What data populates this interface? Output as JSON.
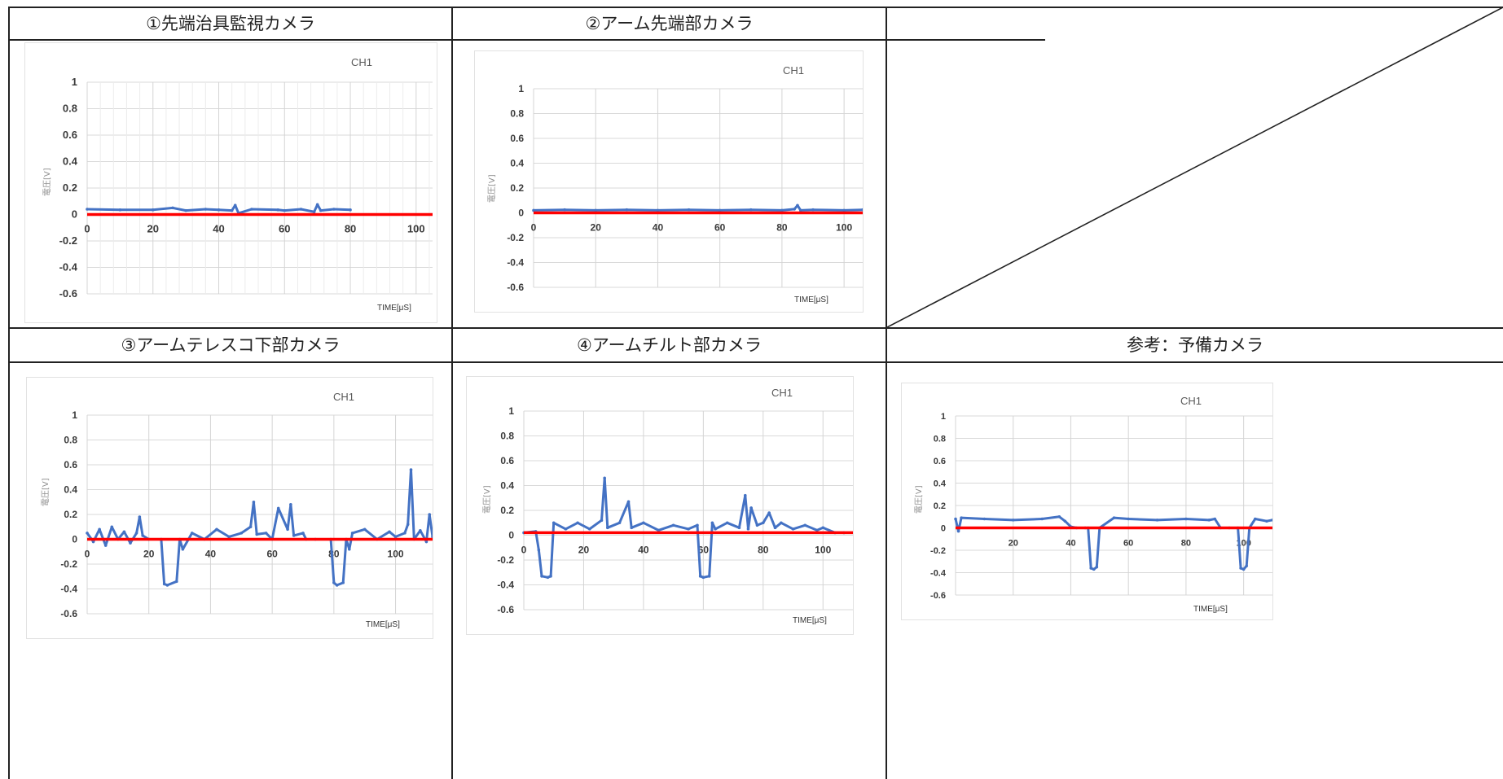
{
  "cells": {
    "c1": {
      "title": "①先端治具監視カメラ"
    },
    "c2": {
      "title": "②アーム先端部カメラ"
    },
    "c3": {
      "title": "③アームテレスコ下部カメラ"
    },
    "c4": {
      "title": "④アームチルト部カメラ"
    },
    "c5": {
      "title": "参考：予備カメラ"
    }
  },
  "chart_data": [
    {
      "id": "c1",
      "type": "line",
      "title": "CH1",
      "xlabel": "TIME[μS]",
      "ylabel": "電圧[V]",
      "xlim": [
        0,
        105
      ],
      "ylim": [
        -0.6,
        1
      ],
      "xticks": [
        0,
        20,
        40,
        60,
        80,
        100
      ],
      "yticks": [
        1,
        0.8,
        0.6,
        0.4,
        0.2,
        0,
        -0.2,
        -0.4,
        -0.6
      ],
      "ytick_labels": [
        "1",
        "0.8",
        "0.6",
        "0.4",
        "0.2",
        "0",
        "-0.2",
        "-0.4",
        "-0.6"
      ],
      "grid": "minor",
      "series": [
        {
          "color": "#4472c4",
          "x": [
            0,
            10,
            20,
            26,
            30,
            36,
            40,
            44,
            45,
            46,
            50,
            58,
            60,
            65,
            69,
            70,
            71,
            75,
            80
          ],
          "y": [
            0.04,
            0.035,
            0.035,
            0.05,
            0.03,
            0.04,
            0.035,
            0.03,
            0.07,
            0.01,
            0.04,
            0.035,
            0.03,
            0.04,
            0.02,
            0.075,
            0.03,
            0.04,
            0.035
          ]
        },
        {
          "color": "#ff0000",
          "x": [
            0,
            105
          ],
          "y": [
            0,
            0
          ]
        }
      ]
    },
    {
      "id": "c2",
      "type": "line",
      "title": "CH1",
      "xlabel": "TIME[μS]",
      "ylabel": "電圧[V]",
      "xlim": [
        0,
        106
      ],
      "ylim": [
        -0.6,
        1
      ],
      "xticks": [
        0,
        20,
        40,
        60,
        80,
        100
      ],
      "yticks": [
        1,
        0.8,
        0.6,
        0.4,
        0.2,
        0,
        -0.2,
        -0.4,
        -0.6
      ],
      "ytick_labels": [
        "1",
        "0.8",
        "0.6",
        "0.4",
        "0.2",
        "0",
        "-0.2",
        "-0.4",
        "-0.6"
      ],
      "grid": "major",
      "series": [
        {
          "color": "#4472c4",
          "x": [
            0,
            10,
            20,
            30,
            40,
            50,
            60,
            70,
            80,
            84,
            85,
            86,
            90,
            100,
            106
          ],
          "y": [
            0.02,
            0.025,
            0.02,
            0.025,
            0.02,
            0.025,
            0.02,
            0.025,
            0.02,
            0.03,
            0.06,
            0.02,
            0.025,
            0.02,
            0.025
          ]
        },
        {
          "color": "#ff0000",
          "x": [
            0,
            106
          ],
          "y": [
            0,
            0
          ]
        }
      ]
    },
    {
      "id": "c3",
      "type": "line",
      "title": "CH1",
      "xlabel": "TIME[μS]",
      "ylabel": "電圧[V]",
      "xlim": [
        0,
        112
      ],
      "ylim": [
        -0.6,
        1
      ],
      "xticks": [
        0,
        20,
        40,
        60,
        80,
        100
      ],
      "yticks": [
        1,
        0.8,
        0.6,
        0.4,
        0.2,
        0,
        -0.2,
        -0.4,
        -0.6
      ],
      "ytick_labels": [
        "1",
        "0.8",
        "0.6",
        "0.4",
        "0.2",
        "0",
        "-0.2",
        "-0.4",
        "-0.6"
      ],
      "grid": "major",
      "series": [
        {
          "color": "#4472c4",
          "x": [
            0,
            2,
            4,
            6,
            8,
            10,
            12,
            14,
            16,
            17,
            18,
            20,
            24,
            25,
            26,
            29,
            30,
            31,
            34,
            38,
            42,
            46,
            50,
            53,
            54,
            55,
            58,
            60,
            62,
            65,
            66,
            67,
            70,
            71,
            74,
            79,
            80,
            81,
            83,
            84,
            85,
            86,
            90,
            94,
            98,
            100,
            103,
            104,
            105,
            106,
            108,
            110,
            111,
            112
          ],
          "y": [
            0.05,
            -0.02,
            0.08,
            -0.05,
            0.1,
            0.0,
            0.06,
            -0.03,
            0.05,
            0.18,
            0.03,
            0.0,
            0.0,
            -0.36,
            -0.37,
            -0.34,
            0.0,
            -0.08,
            0.05,
            0.0,
            0.08,
            0.02,
            0.05,
            0.1,
            0.3,
            0.04,
            0.05,
            0.0,
            0.25,
            0.08,
            0.28,
            0.03,
            0.05,
            0.0,
            0.0,
            0.0,
            -0.35,
            -0.37,
            -0.35,
            0.0,
            -0.08,
            0.05,
            0.08,
            0.0,
            0.06,
            0.02,
            0.05,
            0.12,
            0.56,
            0.0,
            0.07,
            -0.02,
            0.2,
            0.02
          ]
        },
        {
          "color": "#ff0000",
          "x": [
            0,
            112
          ],
          "y": [
            0,
            0
          ]
        }
      ]
    },
    {
      "id": "c4",
      "type": "line",
      "title": "CH1",
      "xlabel": "TIME[μS]",
      "ylabel": "電圧[V]",
      "xlim": [
        0,
        110
      ],
      "ylim": [
        -0.6,
        1
      ],
      "xticks": [
        0,
        20,
        40,
        60,
        80,
        100
      ],
      "yticks": [
        1,
        0.8,
        0.6,
        0.4,
        0.2,
        0,
        -0.2,
        -0.4,
        -0.6
      ],
      "ytick_labels": [
        "1",
        "0.8",
        "0.6",
        "0.4",
        "0.2",
        "0",
        "-0.2",
        "-0.4",
        "-0.6"
      ],
      "grid": "major",
      "series": [
        {
          "color": "#4472c4",
          "x": [
            0,
            4,
            5,
            6,
            8,
            9,
            10,
            14,
            18,
            22,
            26,
            27,
            28,
            32,
            35,
            36,
            40,
            45,
            50,
            55,
            58,
            59,
            60,
            62,
            63,
            64,
            68,
            72,
            74,
            75,
            76,
            78,
            80,
            82,
            84,
            86,
            90,
            94,
            98,
            100,
            104,
            107
          ],
          "y": [
            0.02,
            0.03,
            -0.12,
            -0.33,
            -0.34,
            -0.33,
            0.1,
            0.05,
            0.1,
            0.05,
            0.12,
            0.46,
            0.06,
            0.1,
            0.27,
            0.06,
            0.1,
            0.04,
            0.08,
            0.05,
            0.08,
            -0.33,
            -0.34,
            -0.33,
            0.1,
            0.05,
            0.1,
            0.06,
            0.32,
            0.05,
            0.22,
            0.08,
            0.1,
            0.18,
            0.06,
            0.1,
            0.05,
            0.08,
            0.04,
            0.06,
            0.02,
            0.02
          ]
        },
        {
          "color": "#ff0000",
          "x": [
            0,
            110
          ],
          "y": [
            0.02,
            0.02
          ]
        }
      ]
    },
    {
      "id": "c5",
      "type": "line",
      "title": "CH1",
      "xlabel": "TIME[μS]",
      "ylabel": "電圧[V]",
      "xlim": [
        0,
        110
      ],
      "ylim": [
        -0.6,
        1
      ],
      "xticks": [
        20,
        40,
        60,
        80,
        100
      ],
      "yticks": [
        1,
        0.8,
        0.6,
        0.4,
        0.2,
        0,
        -0.2,
        -0.4,
        -0.6
      ],
      "ytick_labels": [
        "1",
        "0.8",
        "0.6",
        "0.4",
        "0.2",
        "0",
        "-0.2",
        "-0.4",
        "-0.6"
      ],
      "grid": "major",
      "series": [
        {
          "color": "#4472c4",
          "x": [
            0,
            1,
            2,
            10,
            20,
            30,
            36,
            38,
            40,
            42,
            45,
            46,
            47,
            48,
            49,
            50,
            55,
            60,
            70,
            80,
            88,
            90,
            92,
            95,
            98,
            99,
            100,
            101,
            102,
            104,
            108,
            110
          ],
          "y": [
            0.08,
            -0.03,
            0.09,
            0.08,
            0.07,
            0.08,
            0.1,
            0.06,
            0.01,
            0.0,
            0.0,
            0.0,
            -0.36,
            -0.37,
            -0.35,
            0.0,
            0.09,
            0.08,
            0.07,
            0.08,
            0.07,
            0.08,
            0.0,
            0.0,
            0.0,
            -0.36,
            -0.37,
            -0.34,
            0.0,
            0.08,
            0.06,
            0.07
          ]
        },
        {
          "color": "#ff0000",
          "x": [
            0,
            110
          ],
          "y": [
            0,
            0
          ]
        }
      ]
    }
  ]
}
